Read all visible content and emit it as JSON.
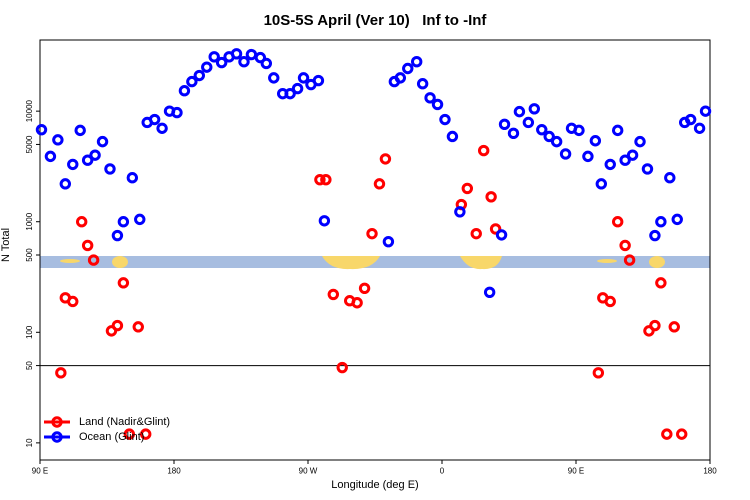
{
  "chart_data": {
    "type": "scatter",
    "title": "10S-5S April (Ver 10)   Inf to -Inf",
    "x_label": "Longitude (deg E)",
    "y_label": "N Total",
    "xlim": [
      90,
      540
    ],
    "xticks": [
      {
        "value": 90,
        "label": "90 E"
      },
      180,
      {
        "value": 270,
        "label": "90 W"
      },
      {
        "value": 360,
        "label": "0"
      },
      {
        "value": 450,
        "label": "90 E"
      },
      {
        "value": 540,
        "label": "180"
      }
    ],
    "ylim": [
      7,
      44000
    ],
    "yticks": [
      10,
      50,
      100,
      500,
      1000,
      5000,
      10000
    ],
    "log_y": true,
    "reference_line": 50,
    "legend_position": "bottom left",
    "series": [
      {
        "name": "Land (Nadir&Glint)",
        "color": "#ff0000",
        "x": [
          104,
          107,
          112,
          118,
          122,
          126,
          138,
          142,
          146,
          150,
          156,
          161,
          278,
          282,
          287,
          293,
          298,
          303,
          308,
          313,
          318,
          322,
          373,
          377,
          383,
          388,
          393,
          396,
          465,
          468,
          473,
          478,
          483,
          486,
          499,
          503,
          507,
          511,
          516,
          521
        ],
        "values": [
          43,
          205,
          190,
          1000,
          610,
          450,
          103,
          115,
          280,
          12,
          112,
          12,
          2400,
          2400,
          220,
          48,
          193,
          185,
          250,
          780,
          2200,
          3700,
          1430,
          2000,
          780,
          4400,
          1680,
          860,
          43,
          205,
          190,
          1000,
          610,
          450,
          103,
          115,
          280,
          12,
          112,
          12
        ]
      },
      {
        "name": "Ocean (Glint)",
        "color": "#0000ff",
        "x": [
          91,
          97,
          102,
          107,
          112,
          117,
          122,
          127,
          132,
          137,
          142,
          146,
          152,
          157,
          162,
          167,
          172,
          177,
          182,
          187,
          192,
          197,
          202,
          207,
          212,
          217,
          222,
          227,
          232,
          238,
          242,
          247,
          253,
          258,
          263,
          267,
          272,
          277,
          281,
          324,
          328,
          332,
          337,
          343,
          347,
          352,
          357,
          362,
          367,
          372,
          392,
          400,
          402,
          408,
          412,
          418,
          422,
          427,
          432,
          437,
          443,
          447,
          452,
          458,
          463,
          467,
          473,
          478,
          483,
          488,
          493,
          498,
          503,
          507,
          513,
          518,
          523,
          527,
          533,
          537
        ],
        "values": [
          6800,
          3900,
          5500,
          2200,
          3300,
          6700,
          3600,
          4000,
          5300,
          3000,
          750,
          1000,
          2500,
          1050,
          7900,
          8400,
          7000,
          10000,
          9700,
          15300,
          18500,
          21000,
          25000,
          31000,
          27500,
          31000,
          33000,
          28000,
          32500,
          30500,
          27000,
          20000,
          14400,
          14400,
          16000,
          20000,
          17400,
          18900,
          1020,
          660,
          18500,
          20000,
          24300,
          28000,
          17700,
          13200,
          11500,
          8400,
          5900,
          1230,
          230,
          760,
          7600,
          6300,
          9900,
          7900,
          10500,
          6800,
          5900,
          5300,
          4100,
          7000,
          6700,
          3900,
          5400,
          2200,
          3300,
          6700,
          3600,
          4000,
          5300,
          3000,
          750,
          1000,
          2500,
          1050,
          7900,
          8400,
          7000,
          10000
        ]
      }
    ]
  }
}
